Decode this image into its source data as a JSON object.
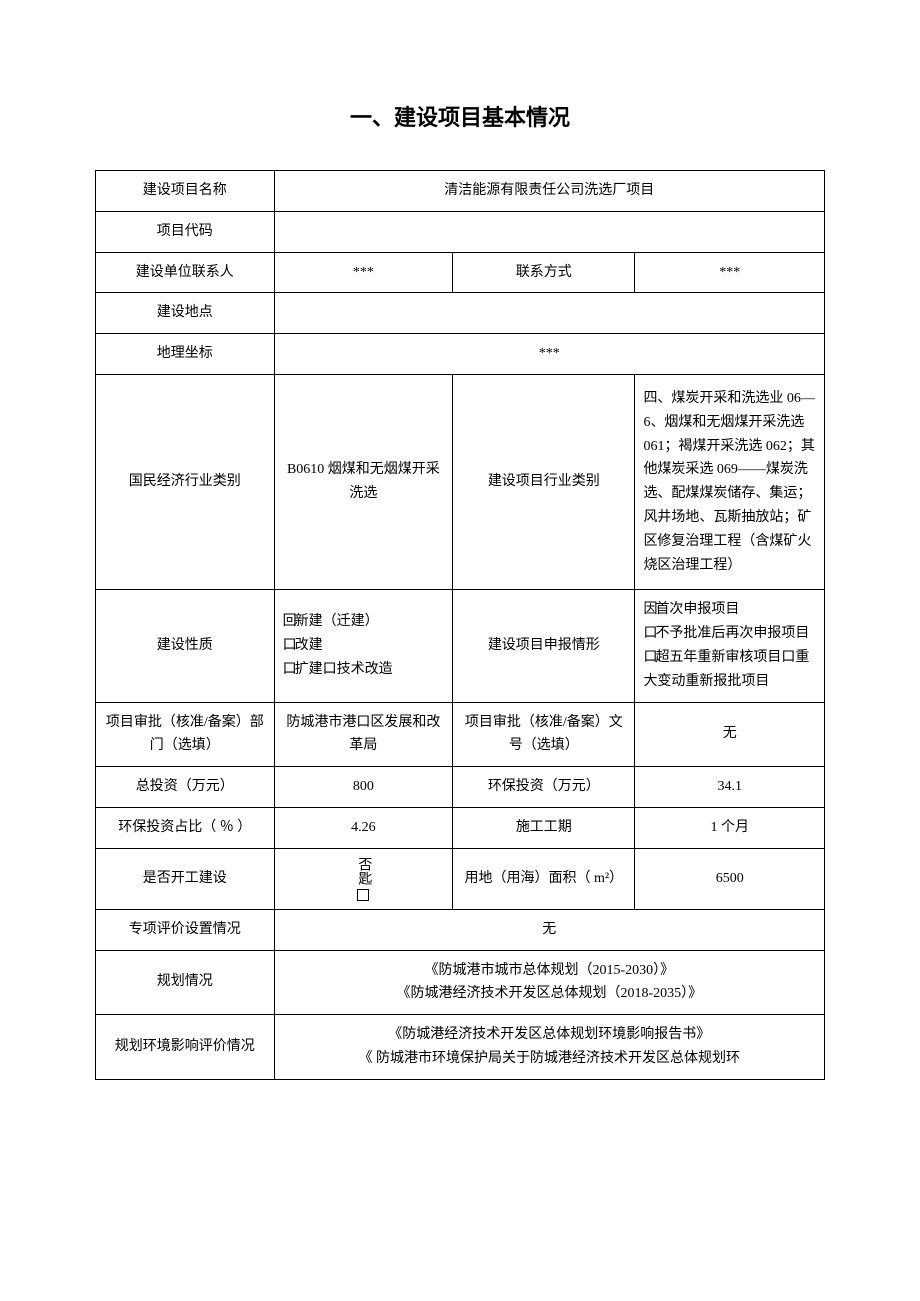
{
  "title": "一、建设项目基本情况",
  "labels": {
    "project_name": "建设项目名称",
    "project_code": "项目代码",
    "contact_person": "建设单位联系人",
    "contact_method": "联系方式",
    "location": "建设地点",
    "geo_coord": "地理坐标",
    "industry_class": "国民经济行业类别",
    "project_industry_class": "建设项目行业类别",
    "construction_nature": "建设性质",
    "application_type": "建设项目申报情形",
    "approval_dept": "项目审批（核准/备案）部门（选填）",
    "approval_no": "项目审批（核准/备案）文号（选填）",
    "total_invest": "总投资（万元）",
    "env_invest": "环保投资（万元）",
    "env_ratio": "环保投资占比（ ％ ）",
    "duration": "施工工期",
    "started": "是否开工建设",
    "land_area": "用地（用海）面积（ m²）",
    "special_eval": "专项评价设置情况",
    "planning": "规划情况",
    "planning_env": "规划环境影响评价情况"
  },
  "values": {
    "project_name": "清洁能源有限责任公司洗选厂项目",
    "project_code": "",
    "contact_person": "***",
    "contact_method": "***",
    "location": "",
    "geo_coord": "***",
    "industry_class": "B0610 烟煤和无烟煤开采洗选",
    "project_industry_class": "四、煤炭开采和洗选业 06—6、烟煤和无烟煤开采洗选 061；褐煤开采洗选 062；其他煤炭采选 069——煤炭洗选、配煤煤炭储存、集运；风井场地、瓦斯抽放站；矿区修复治理工程（含煤矿火烧区治理工程）",
    "construction_nature_options": [
      {
        "mark": "回",
        "text": "新建（迁建）"
      },
      {
        "mark": "口",
        "text": "改建"
      },
      {
        "mark": "口",
        "text": "扩建口技术改造"
      }
    ],
    "application_type_options": [
      {
        "mark": "因",
        "text": "首次申报项目"
      },
      {
        "mark": "口",
        "text": "不予批准后再次申报项目"
      },
      {
        "mark": "口",
        "text": "超五年重新审核项目口重大变动重新报批项目"
      }
    ],
    "approval_dept": "防城港市港口区发展和改革局",
    "approval_no": "无",
    "total_invest": "800",
    "env_invest": "34.1",
    "env_ratio": "4.26",
    "duration": "1 个月",
    "started_options": {
      "top": "否匙",
      "bottom_box": true
    },
    "land_area": "6500",
    "special_eval": "无",
    "planning_lines": [
      "《防城港市城市总体规划（2015-2030）》",
      "《防城港经济技术开发区总体规划（2018-2035）》"
    ],
    "planning_env_lines": [
      "《防城港经济技术开发区总体规划环境影响报告书》",
      "《 防城港市环境保护局关于防城港经济技术开发区总体规划环"
    ]
  },
  "style": {
    "page_bg": "#ffffff",
    "text_color": "#000000",
    "border_color": "#000000",
    "title_fontsize": 22,
    "cell_fontsize": 14,
    "line_height": 1.7
  }
}
